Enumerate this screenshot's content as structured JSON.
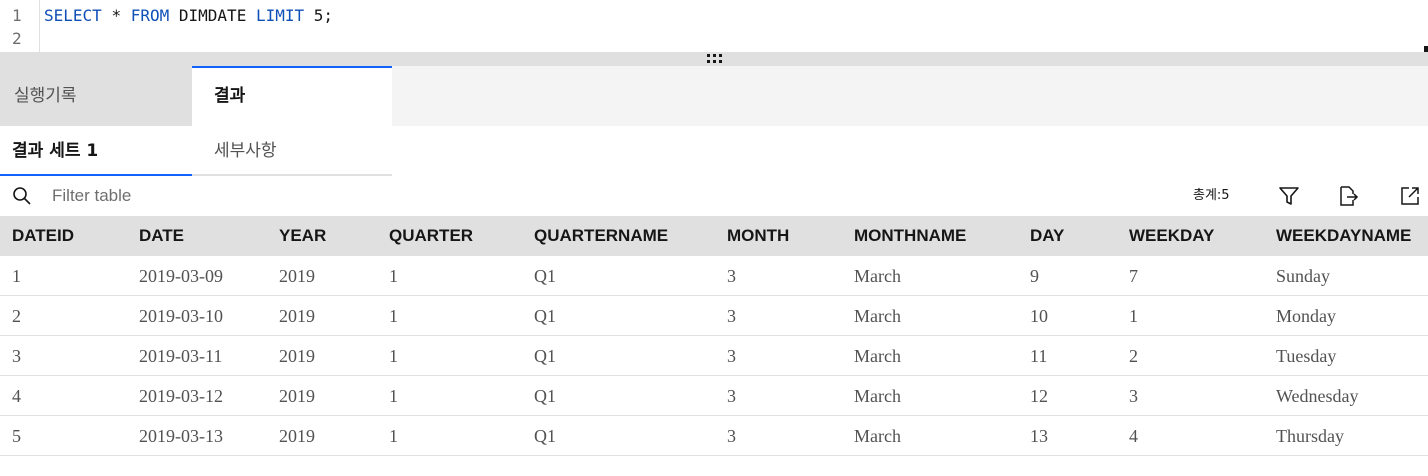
{
  "editor": {
    "line_numbers": [
      "1",
      "2"
    ],
    "code": {
      "kw_select": "SELECT",
      "star": "*",
      "kw_from": "FROM",
      "table": "DIMDATE",
      "kw_limit": "LIMIT",
      "limit_value": "5;"
    }
  },
  "top_tabs": {
    "history": "실행기록",
    "results": "결과"
  },
  "sub_tabs": {
    "result_set": "결과 세트 1",
    "details": "세부사항"
  },
  "toolbar": {
    "filter_placeholder": "Filter table",
    "total_label": "총계:5"
  },
  "icons": {
    "search": "search-icon",
    "filter": "filter-icon",
    "export": "export-icon",
    "popout": "launch-icon"
  },
  "colors": {
    "accent": "#0f62fe",
    "keyword": "#0f4fb8"
  },
  "table": {
    "columns": [
      "DATEID",
      "DATE",
      "YEAR",
      "QUARTER",
      "QUARTERNAME",
      "MONTH",
      "MONTHNAME",
      "DAY",
      "WEEKDAY",
      "WEEKDAYNAME"
    ],
    "rows": [
      [
        "1",
        "2019-03-09",
        "2019",
        "1",
        "Q1",
        "3",
        "March",
        "9",
        "7",
        "Sunday"
      ],
      [
        "2",
        "2019-03-10",
        "2019",
        "1",
        "Q1",
        "3",
        "March",
        "10",
        "1",
        "Monday"
      ],
      [
        "3",
        "2019-03-11",
        "2019",
        "1",
        "Q1",
        "3",
        "March",
        "11",
        "2",
        "Tuesday"
      ],
      [
        "4",
        "2019-03-12",
        "2019",
        "1",
        "Q1",
        "3",
        "March",
        "12",
        "3",
        "Wednesday"
      ],
      [
        "5",
        "2019-03-13",
        "2019",
        "1",
        "Q1",
        "3",
        "March",
        "13",
        "4",
        "Thursday"
      ]
    ]
  }
}
